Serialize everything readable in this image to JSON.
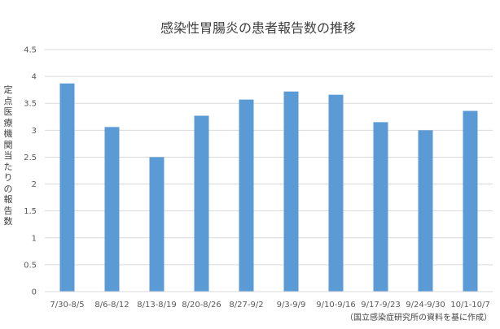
{
  "chart_data": {
    "type": "bar",
    "title": "感染性胃腸炎の患者報告数の推移",
    "ylabel": "定点医療機関当たりの報告数",
    "xlabel": "",
    "categories": [
      "7/30-8/5",
      "8/6-8/12",
      "8/13-8/19",
      "8/20-8/26",
      "8/27-9/2",
      "9/3-9/9",
      "9/10-9/16",
      "9/17-9/23",
      "9/24-9/30",
      "10/1-10/7"
    ],
    "values": [
      3.87,
      3.06,
      2.5,
      3.27,
      3.57,
      3.72,
      3.66,
      3.15,
      3.0,
      3.36
    ],
    "ylim": [
      0,
      4.5
    ],
    "yticks": [
      "0",
      "0.5",
      "1",
      "1.5",
      "2",
      "2.5",
      "3",
      "3.5",
      "4",
      "4.5"
    ],
    "grid": true,
    "bar_color": "#5b9bd5",
    "source_note": "（国立感染症研究所の資料を基に作成）"
  }
}
